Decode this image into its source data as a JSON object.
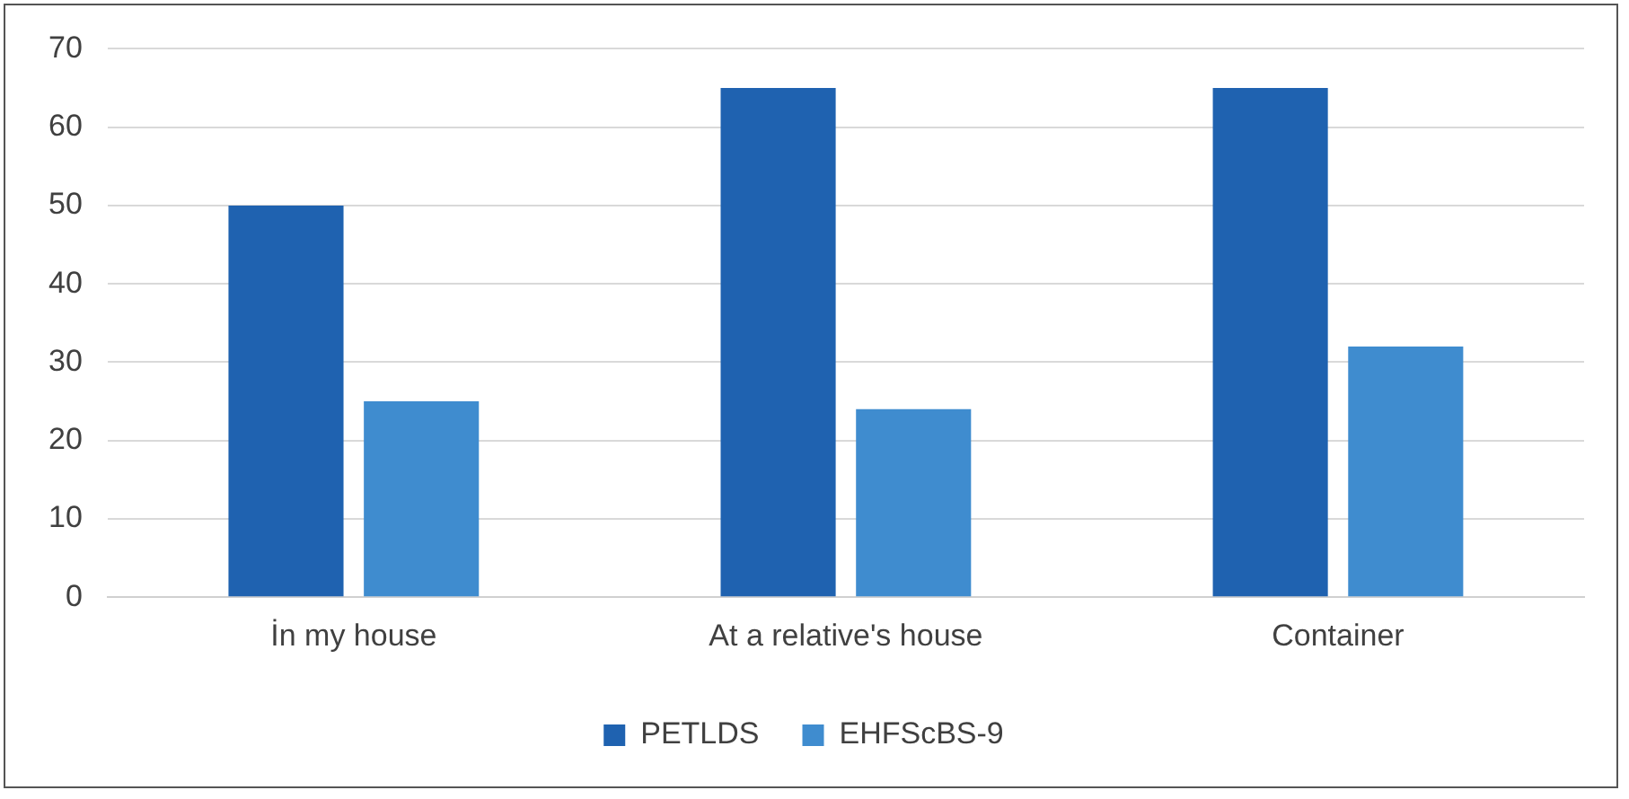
{
  "chart_data": {
    "type": "bar",
    "categories": [
      "İn my house",
      "At a relative's house",
      "Container"
    ],
    "series": [
      {
        "name": "PETLDS",
        "color": "#1f62b0",
        "values": [
          50,
          65,
          65
        ]
      },
      {
        "name": "EHFScBS-9",
        "color": "#3f8ccf",
        "values": [
          25,
          24,
          32
        ]
      }
    ],
    "ylim": [
      0,
      70
    ],
    "yticks": [
      0,
      10,
      20,
      30,
      40,
      50,
      60,
      70
    ],
    "grid": "y",
    "legend": "bottom"
  }
}
